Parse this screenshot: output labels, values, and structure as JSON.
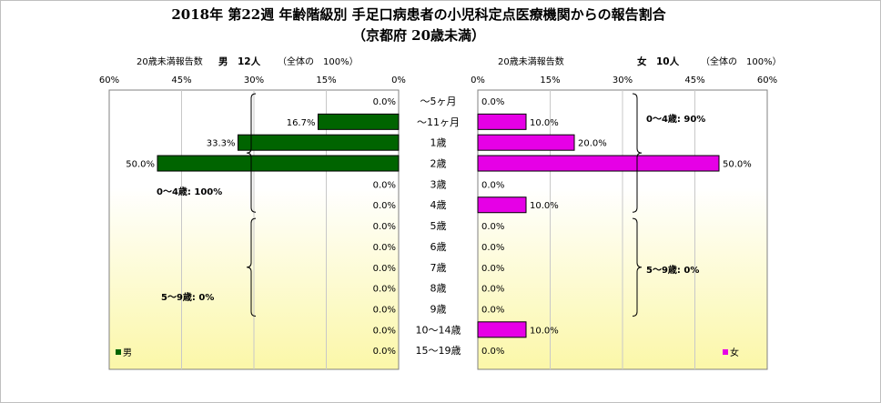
{
  "chart_data": {
    "type": "bar",
    "title_line1": "2018年 第22週 年齢階級別 手足口病患者の小児科定点医療機関からの報告割合",
    "title_line2": "（京都府 20歳未満）",
    "categories": [
      "～5ヶ月",
      "～11ヶ月",
      "1歳",
      "2歳",
      "3歳",
      "4歳",
      "5歳",
      "6歳",
      "7歳",
      "8歳",
      "9歳",
      "10～14歳",
      "15～19歳"
    ],
    "value_format": "0.0%",
    "male": {
      "header_label": "20歳未満報告数",
      "header_count": "男　12人",
      "header_total": "（全体の　100%）",
      "legend": "男",
      "color": "#006400",
      "xlim": [
        0,
        60
      ],
      "ticks": [
        "60%",
        "45%",
        "30%",
        "15%",
        "0%"
      ],
      "tick_values": [
        60,
        45,
        30,
        15,
        0
      ],
      "values": [
        0.0,
        16.7,
        33.3,
        50.0,
        0.0,
        0.0,
        0.0,
        0.0,
        0.0,
        0.0,
        0.0,
        0.0,
        0.0
      ],
      "group_0_4": "0～4歳: 100%",
      "group_5_9": "5～9歳: 0%"
    },
    "female": {
      "header_label": "20歳未満報告数",
      "header_count": "女　10人",
      "header_total": "（全体の　100%）",
      "legend": "女",
      "color": "#e600e6",
      "xlim": [
        0,
        60
      ],
      "ticks": [
        "0%",
        "15%",
        "30%",
        "45%",
        "60%"
      ],
      "tick_values": [
        0,
        15,
        30,
        45,
        60
      ],
      "values": [
        0.0,
        10.0,
        20.0,
        50.0,
        0.0,
        10.0,
        0.0,
        0.0,
        0.0,
        0.0,
        0.0,
        10.0,
        0.0
      ],
      "group_0_4": "0～4歳: 90%",
      "group_5_9": "5～9歳: 0%"
    },
    "grid": true
  }
}
